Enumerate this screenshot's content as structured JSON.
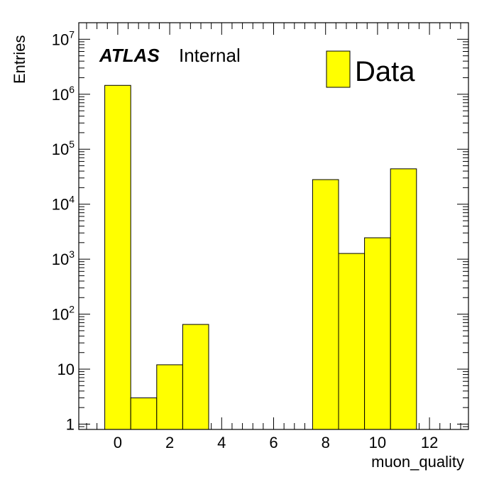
{
  "chart_data": {
    "type": "bar",
    "histogram": true,
    "bin_edges": [
      -0.5,
      0.5,
      1.5,
      2.5,
      3.5,
      4.5,
      5.5,
      6.5,
      7.5,
      8.5,
      9.5,
      10.5,
      11.5
    ],
    "series": [
      {
        "name": "Data",
        "values": [
          1450000,
          3,
          12,
          65,
          0,
          0,
          0,
          0,
          28000,
          1270,
          2450,
          44000
        ],
        "color": "#ffff00",
        "edge_color": "#000000"
      }
    ],
    "xlabel": "muon_quality",
    "ylabel": "Entries",
    "xlim": [
      -1.5,
      13.5
    ],
    "ylim": [
      0.8,
      20000000
    ],
    "y_scale": "log",
    "x_ticks": [
      0,
      2,
      4,
      6,
      8,
      10,
      12
    ],
    "x_tick_labels": [
      "0",
      "2",
      "4",
      "6",
      "8",
      "10",
      "12"
    ],
    "y_ticks": [
      {
        "value": 1,
        "mantissa": "1",
        "exp": ""
      },
      {
        "value": 10,
        "mantissa": "10",
        "exp": ""
      },
      {
        "value": 100,
        "mantissa": "10",
        "exp": "2"
      },
      {
        "value": 1000,
        "mantissa": "10",
        "exp": "3"
      },
      {
        "value": 10000,
        "mantissa": "10",
        "exp": "4"
      },
      {
        "value": 100000,
        "mantissa": "10",
        "exp": "5"
      },
      {
        "value": 1000000,
        "mantissa": "10",
        "exp": "6"
      },
      {
        "value": 10000000,
        "mantissa": "10",
        "exp": "7"
      }
    ],
    "legend_position": "top-right",
    "grid": false,
    "annotation": {
      "bold": "ATLAS",
      "text": "Internal"
    }
  }
}
